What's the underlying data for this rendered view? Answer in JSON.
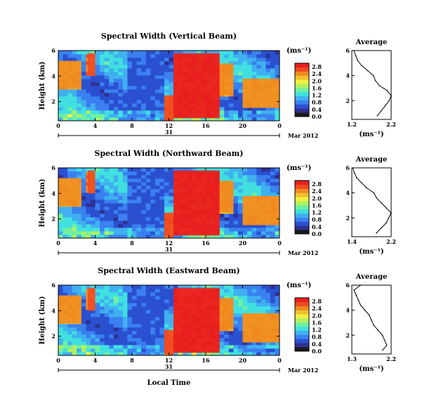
{
  "figure": {
    "x_axis_label": "Local Time",
    "date_label": "Mar 2012",
    "day_label": "31",
    "colors": [
      "#1a1a1a",
      "#303090",
      "#2a50d0",
      "#3a80f0",
      "#40b0f0",
      "#40e0e0",
      "#70f0a0",
      "#b0f060",
      "#f0f040",
      "#f0c030",
      "#f08a20",
      "#f04a20",
      "#e82020"
    ]
  },
  "chart_data": [
    {
      "type": "heatmap",
      "title": "Spectral Width (Vertical Beam)",
      "ylabel": "Height (km)",
      "x_ticks": [
        "0",
        "4",
        "8",
        "12",
        "16",
        "20",
        "0"
      ],
      "xlim": [
        0,
        24
      ],
      "y_ticks": [
        "2",
        "4",
        "6"
      ],
      "ylim": [
        0.5,
        6.0
      ],
      "colorbar_unit": "(ms⁻¹)",
      "colorbar_ticks": [
        "0.0",
        "0.4",
        "0.8",
        "1.2",
        "1.6",
        "2.0",
        "2.4",
        "2.8"
      ],
      "colorbar_range": [
        0.0,
        3.0
      ],
      "regions": [
        {
          "x": [
            0,
            2.5
          ],
          "y": [
            3.0,
            5.2
          ],
          "value": 2.4
        },
        {
          "x": [
            3.2,
            4.0
          ],
          "y": [
            4.0,
            5.8
          ],
          "value": 2.6
        },
        {
          "x": [
            11.5,
            12.5
          ],
          "y": [
            0.6,
            2.5
          ],
          "value": 2.7
        },
        {
          "x": [
            12.5,
            17.5
          ],
          "y": [
            0.7,
            5.8
          ],
          "value": 2.9
        },
        {
          "x": [
            17.5,
            19.0
          ],
          "y": [
            2.5,
            5.0
          ],
          "value": 2.5
        },
        {
          "x": [
            20.0,
            24.0
          ],
          "y": [
            1.5,
            3.8
          ],
          "value": 2.4
        }
      ],
      "average_profile": {
        "title": "Average",
        "xlabel": "(ms⁻¹)",
        "x_ticks": [
          "1.2",
          "2.2"
        ],
        "xlim": [
          1.2,
          2.2
        ],
        "y_ticks": [
          "2",
          "4",
          "6"
        ],
        "ylim": [
          0.5,
          6.0
        ],
        "height_km": [
          0.8,
          1.2,
          1.6,
          2.0,
          2.4,
          2.8,
          3.2,
          3.6,
          4.0,
          4.4,
          4.8,
          5.2,
          5.6,
          6.0
        ],
        "width_ms": [
          1.85,
          1.95,
          2.05,
          2.15,
          2.2,
          2.1,
          1.9,
          1.8,
          1.75,
          1.6,
          1.45,
          1.35,
          1.3,
          1.25
        ]
      }
    },
    {
      "type": "heatmap",
      "title": "Spectral Width (Northward Beam)",
      "ylabel": "Height (km)",
      "x_ticks": [
        "0",
        "4",
        "8",
        "12",
        "16",
        "20",
        "0"
      ],
      "xlim": [
        0,
        24
      ],
      "y_ticks": [
        "2",
        "4",
        "6"
      ],
      "ylim": [
        0.5,
        6.0
      ],
      "colorbar_unit": "(ms⁻¹)",
      "colorbar_ticks": [
        "0.0",
        "0.4",
        "0.8",
        "1.2",
        "1.6",
        "2.0",
        "2.4",
        "2.8"
      ],
      "colorbar_range": [
        0.0,
        3.0
      ],
      "regions": [
        {
          "x": [
            0,
            2.5
          ],
          "y": [
            3.0,
            5.2
          ],
          "value": 2.4
        },
        {
          "x": [
            3.2,
            4.0
          ],
          "y": [
            4.0,
            5.8
          ],
          "value": 2.6
        },
        {
          "x": [
            11.5,
            12.5
          ],
          "y": [
            0.6,
            2.5
          ],
          "value": 2.7
        },
        {
          "x": [
            12.5,
            17.5
          ],
          "y": [
            0.7,
            5.8
          ],
          "value": 2.9
        },
        {
          "x": [
            17.5,
            19.0
          ],
          "y": [
            2.5,
            5.0
          ],
          "value": 2.5
        },
        {
          "x": [
            20.0,
            24.0
          ],
          "y": [
            1.5,
            3.8
          ],
          "value": 2.4
        }
      ],
      "average_profile": {
        "title": "Average",
        "xlabel": "(ms⁻¹)",
        "x_ticks": [
          "1.4",
          "2.2"
        ],
        "xlim": [
          1.4,
          2.2
        ],
        "y_ticks": [
          "2",
          "4",
          "6"
        ],
        "ylim": [
          0.5,
          6.0
        ],
        "height_km": [
          0.8,
          1.2,
          1.6,
          2.0,
          2.4,
          2.8,
          3.2,
          3.6,
          4.0,
          4.4,
          4.8,
          5.2,
          5.6,
          6.0
        ],
        "width_ms": [
          1.9,
          2.0,
          2.1,
          2.15,
          2.2,
          2.1,
          2.0,
          1.9,
          1.85,
          1.7,
          1.6,
          1.5,
          1.45,
          1.42
        ]
      }
    },
    {
      "type": "heatmap",
      "title": "Spectral Width (Eastward Beam)",
      "ylabel": "Height (km)",
      "x_ticks": [
        "0",
        "4",
        "8",
        "12",
        "16",
        "20",
        "0"
      ],
      "xlim": [
        0,
        24
      ],
      "y_ticks": [
        "2",
        "4",
        "6"
      ],
      "ylim": [
        0.5,
        6.0
      ],
      "colorbar_unit": "(ms⁻¹)",
      "colorbar_ticks": [
        "0.0",
        "0.4",
        "0.8",
        "1.2",
        "1.6",
        "2.0",
        "2.4",
        "2.8"
      ],
      "colorbar_range": [
        0.0,
        3.0
      ],
      "regions": [
        {
          "x": [
            0,
            2.5
          ],
          "y": [
            3.0,
            5.2
          ],
          "value": 2.4
        },
        {
          "x": [
            3.2,
            4.0
          ],
          "y": [
            4.0,
            5.8
          ],
          "value": 2.6
        },
        {
          "x": [
            11.5,
            12.5
          ],
          "y": [
            0.6,
            2.5
          ],
          "value": 2.7
        },
        {
          "x": [
            12.5,
            17.5
          ],
          "y": [
            0.7,
            5.8
          ],
          "value": 2.9
        },
        {
          "x": [
            17.5,
            19.0
          ],
          "y": [
            2.5,
            5.0
          ],
          "value": 2.5
        },
        {
          "x": [
            20.0,
            24.0
          ],
          "y": [
            1.5,
            3.8
          ],
          "value": 2.4
        }
      ],
      "average_profile": {
        "title": "Average",
        "xlabel": "(ms⁻¹)",
        "x_ticks": [
          "1.3",
          "2.2"
        ],
        "xlim": [
          1.3,
          2.2
        ],
        "y_ticks": [
          "2",
          "4",
          "6"
        ],
        "ylim": [
          0.5,
          6.0
        ],
        "height_km": [
          0.8,
          1.2,
          1.6,
          2.0,
          2.4,
          2.8,
          3.2,
          3.6,
          4.0,
          4.4,
          4.8,
          5.2,
          5.6,
          6.0
        ],
        "width_ms": [
          2.0,
          2.1,
          2.05,
          2.0,
          1.9,
          1.8,
          1.75,
          1.7,
          1.6,
          1.5,
          1.45,
          1.4,
          1.35,
          1.5
        ]
      }
    }
  ]
}
